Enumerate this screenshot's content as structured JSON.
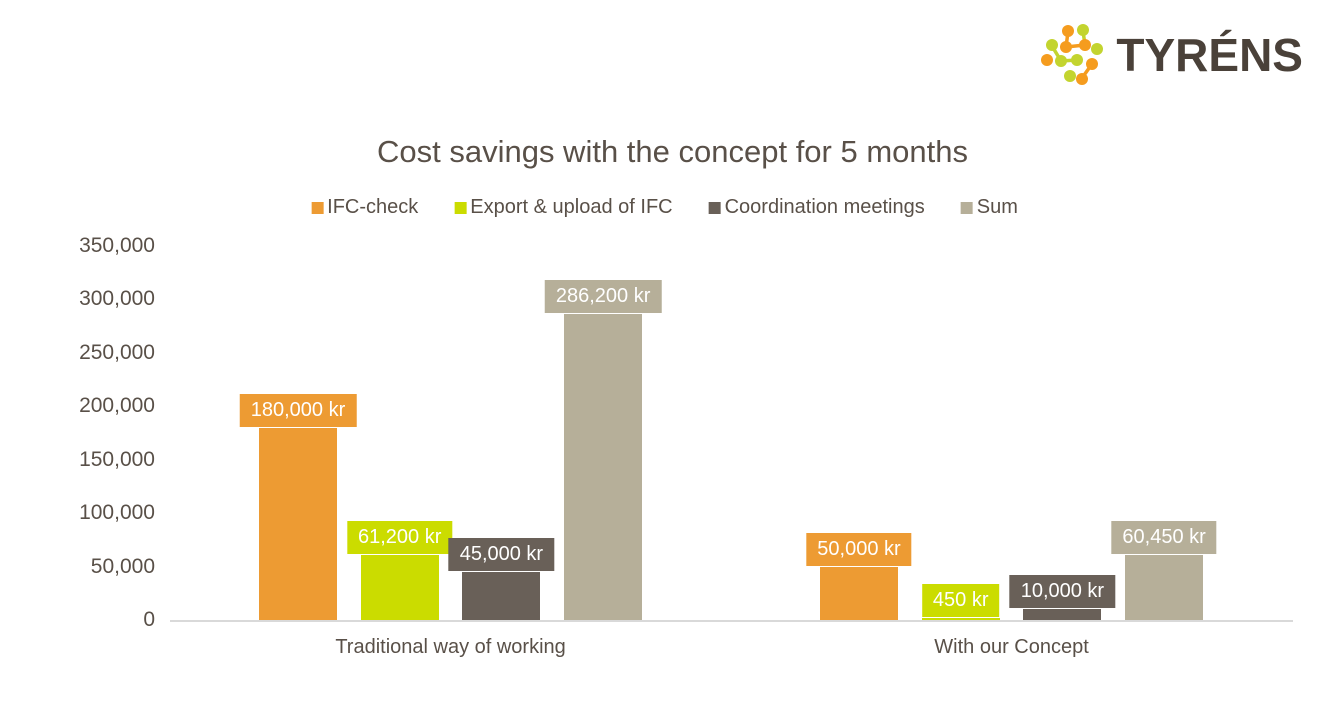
{
  "logo": {
    "brand": "TYRÉNS",
    "text_color": "#4A4139",
    "dot_orange": "#F59C1E",
    "dot_green": "#C3D42F"
  },
  "chart_data": {
    "type": "bar",
    "title": "Cost savings with the concept for 5 months",
    "categories": [
      "Traditional way of working",
      "With our Concept"
    ],
    "series": [
      {
        "name": "IFC-check",
        "color": "#ED9B33",
        "values": [
          180000,
          50000
        ],
        "labels": [
          "180,000 kr",
          "50,000 kr"
        ]
      },
      {
        "name": "Export & upload of IFC",
        "color": "#CBDC00",
        "values": [
          61200,
          450
        ],
        "labels": [
          "61,200 kr",
          "450 kr"
        ]
      },
      {
        "name": "Coordination meetings",
        "color": "#696058",
        "values": [
          45000,
          10000
        ],
        "labels": [
          "45,000 kr",
          "10,000 kr"
        ]
      },
      {
        "name": "Sum",
        "color": "#B6AF99",
        "values": [
          286200,
          60450
        ],
        "labels": [
          "286,200 kr",
          "60,450 kr"
        ]
      }
    ],
    "y_axis": {
      "min": 0,
      "max": 350000,
      "tick_step": 50000,
      "ticks": [
        "0",
        "50,000",
        "100,000",
        "150,000",
        "200,000",
        "250,000",
        "300,000",
        "350,000"
      ]
    },
    "unit": "kr",
    "grid": false,
    "legend_position": "top",
    "data_label_style": "filled-box-above-bar"
  }
}
